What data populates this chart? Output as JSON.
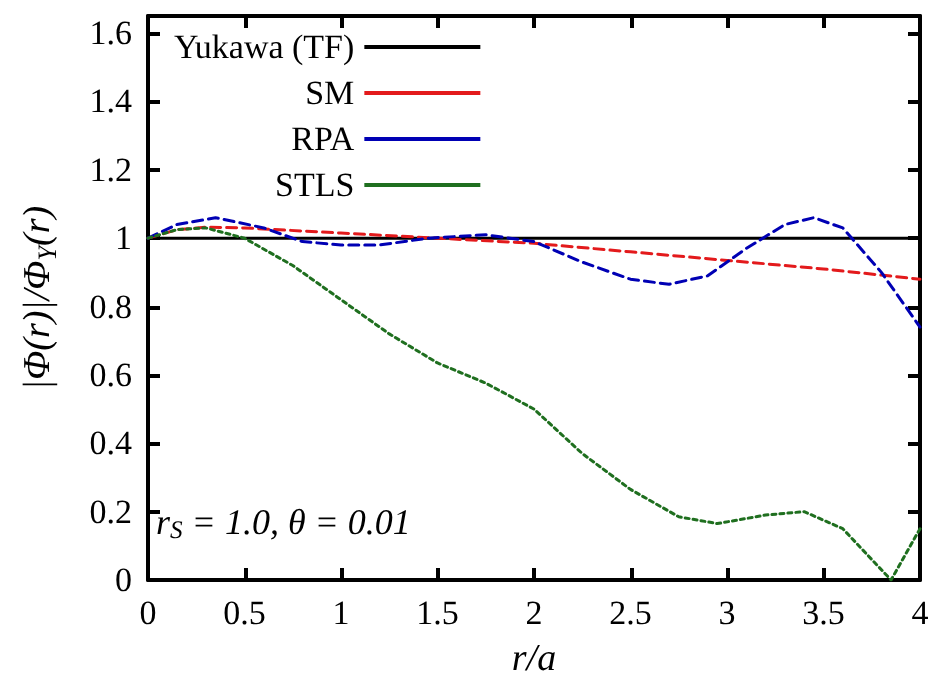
{
  "chart_data": {
    "type": "line",
    "xlabel": "r/a",
    "ylabel": "|Φ(r)|/Φ$_{Y}$(r)",
    "annotations": [
      "r$_{S}$ = 1.0, θ = 0.01"
    ],
    "xlim": [
      0,
      4
    ],
    "xticks": [
      0,
      0.5,
      1,
      1.5,
      2,
      2.5,
      3,
      3.5,
      4
    ],
    "ylim": [
      0,
      1.65
    ],
    "yticks": [
      0,
      0.2,
      0.4,
      0.6,
      0.8,
      1,
      1.2,
      1.4,
      1.6
    ],
    "grid": false,
    "legend": "top left",
    "marker": "none",
    "series": [
      {
        "name": "Yukawa (TF)",
        "color": "#000000",
        "line_style": "solid",
        "x": [
          0,
          4
        ],
        "values": [
          1,
          1
        ]
      },
      {
        "name": "SM",
        "color": "#e31a1c",
        "line_style": "dashed",
        "x": [
          0,
          0.15,
          0.3,
          0.5,
          1,
          1.5,
          2,
          2.5,
          3,
          3.5,
          4
        ],
        "values": [
          1,
          1.025,
          1.032,
          1.03,
          1.015,
          1.0,
          0.985,
          0.96,
          0.935,
          0.91,
          0.88
        ]
      },
      {
        "name": "RPA",
        "color": "#0000b4",
        "line_style": "dashed",
        "x": [
          0,
          0.15,
          0.35,
          0.6,
          0.8,
          1.0,
          1.2,
          1.45,
          1.75,
          2.0,
          2.25,
          2.5,
          2.7,
          2.9,
          3.1,
          3.3,
          3.45,
          3.6,
          3.8,
          4
        ],
        "values": [
          1,
          1.04,
          1.06,
          1.03,
          0.99,
          0.98,
          0.98,
          1.0,
          1.01,
          0.99,
          0.93,
          0.88,
          0.865,
          0.89,
          0.97,
          1.04,
          1.06,
          1.03,
          0.9,
          0.74
        ]
      },
      {
        "name": "STLS",
        "color": "#1f6f1f",
        "line_style": "dotted",
        "x": [
          0,
          0.15,
          0.3,
          0.5,
          0.75,
          1.0,
          1.25,
          1.5,
          1.75,
          2.0,
          2.25,
          2.5,
          2.75,
          2.95,
          3.2,
          3.4,
          3.6,
          3.75,
          3.85,
          4
        ],
        "values": [
          1,
          1.025,
          1.03,
          1.0,
          0.92,
          0.82,
          0.72,
          0.635,
          0.576,
          0.5,
          0.37,
          0.265,
          0.185,
          0.165,
          0.19,
          0.2,
          0.15,
          0.06,
          0,
          0.15
        ]
      }
    ]
  }
}
